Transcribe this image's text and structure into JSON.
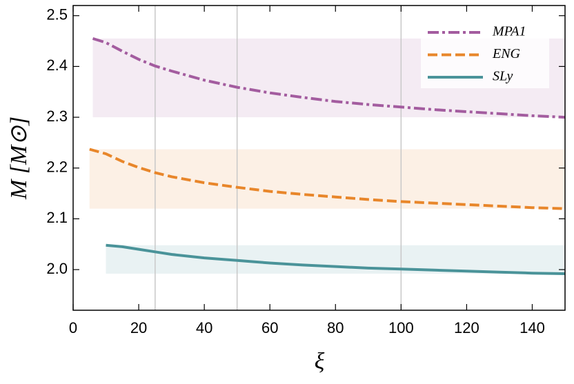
{
  "chart_data": {
    "type": "line",
    "xlabel": "ξ",
    "ylabel": "M [M⊙]",
    "xlim": [
      0,
      150
    ],
    "ylim": [
      1.92,
      2.52
    ],
    "xticks": [
      0,
      20,
      40,
      60,
      80,
      100,
      120,
      140
    ],
    "yticks": [
      {
        "value": 2,
        "label": "2.0"
      },
      2.1,
      2.2,
      2.3,
      2.4,
      2.5
    ],
    "vlines": [
      25,
      50,
      100
    ],
    "legend": "upper right",
    "series": [
      {
        "name": "MPA1",
        "color": "#a35c9f",
        "dash": "dashdot",
        "x": [
          6,
          10,
          15,
          20,
          25,
          30,
          40,
          50,
          60,
          70,
          80,
          90,
          100,
          110,
          120,
          130,
          140,
          150
        ],
        "values": [
          2.455,
          2.447,
          2.43,
          2.414,
          2.401,
          2.391,
          2.373,
          2.359,
          2.348,
          2.339,
          2.331,
          2.325,
          2.32,
          2.315,
          2.311,
          2.307,
          2.303,
          2.3
        ]
      },
      {
        "name": "ENG",
        "color": "#e8862a",
        "dash": "dashed",
        "x": [
          5,
          10,
          15,
          20,
          25,
          30,
          40,
          50,
          60,
          70,
          80,
          90,
          100,
          110,
          120,
          130,
          140,
          150
        ],
        "values": [
          2.237,
          2.228,
          2.213,
          2.201,
          2.191,
          2.183,
          2.171,
          2.162,
          2.154,
          2.148,
          2.143,
          2.138,
          2.134,
          2.131,
          2.128,
          2.125,
          2.122,
          2.12
        ]
      },
      {
        "name": "SLy",
        "color": "#4a9399",
        "dash": "solid",
        "x": [
          10,
          15,
          20,
          25,
          30,
          40,
          50,
          60,
          70,
          80,
          90,
          100,
          110,
          120,
          130,
          140,
          150
        ],
        "values": [
          2.048,
          2.045,
          2.04,
          2.035,
          2.03,
          2.023,
          2.018,
          2.013,
          2.009,
          2.006,
          2.003,
          2.001,
          1.999,
          1.997,
          1.995,
          1.993,
          1.992
        ]
      }
    ]
  }
}
